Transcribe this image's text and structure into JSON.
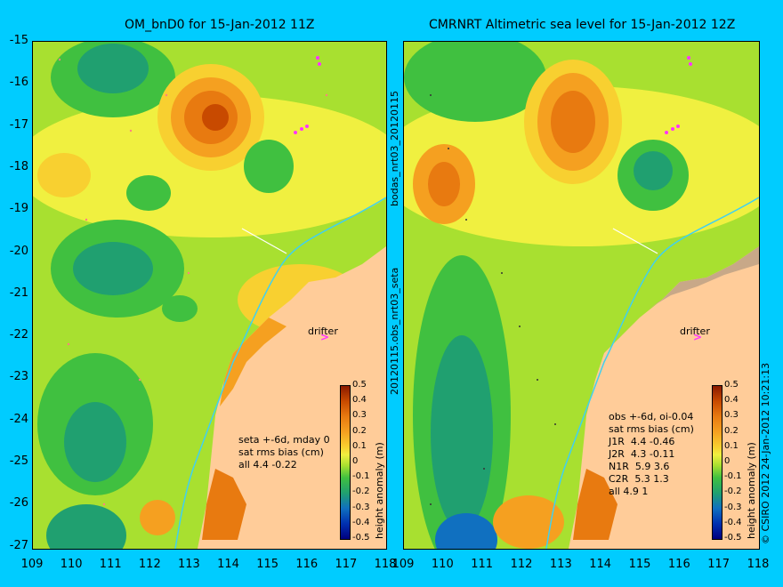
{
  "titles": {
    "left": "OM_bnD0 for 15-Jan-2012 11Z",
    "right": "CMRNRT Altimetric sea level  for 15-Jan-2012 12Z"
  },
  "axes": {
    "y_ticks": [
      "-15",
      "-16",
      "-17",
      "-18",
      "-19",
      "-20",
      "-21",
      "-22",
      "-23",
      "-24",
      "-25",
      "-26",
      "-27"
    ],
    "x_ticks": [
      "109",
      "110",
      "111",
      "112",
      "113",
      "114",
      "115",
      "116",
      "117",
      "118"
    ]
  },
  "colorbar": {
    "ticks": [
      "0.5",
      "0.4",
      "0.3",
      "0.2",
      "0.1",
      "0",
      "-0.1",
      "-0.2",
      "-0.3",
      "-0.4",
      "-0.5"
    ],
    "label": "height anomaly (m)"
  },
  "left_panel": {
    "annotation": "seta +-6d, mday 0\nsat rms bias (cm)\nall 4.4 -0.22",
    "drifter": "drifter"
  },
  "right_panel": {
    "annotation": "obs +-6d, oi-0.04\nsat rms bias (cm)\nJ1R  4.4 -0.46\nJ2R  4.3 -0.11\nN1R  5.9 3.6\nC2R  5.3 1.3\nall 4.9 1",
    "drifter": "drifter"
  },
  "side_labels": {
    "middle_top": "bodas_nrt03_20120115",
    "middle_bottom": "20120115.obs_nrt03_seta",
    "right": "© CSIRO 2012  24-Jan-2012 10:21:13"
  },
  "colors": {
    "background": "#00ccff",
    "land": "#ffcc99",
    "positive": "#e87a10",
    "neutral": "#f0f040",
    "negative": "#40c040"
  }
}
